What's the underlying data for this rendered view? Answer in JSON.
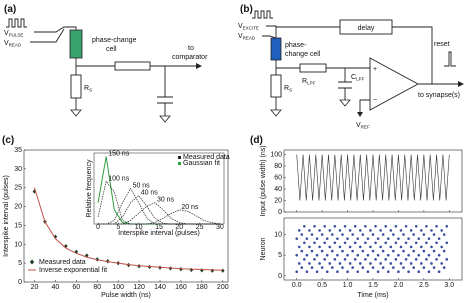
{
  "diagrams": {
    "a": {
      "label": "(a)",
      "v_pulse": {
        "main": "V",
        "sub": "PULSE"
      },
      "v_read": {
        "main": "V",
        "sub": "READ"
      },
      "cell": [
        "phase-change",
        "cell"
      ],
      "target": [
        "to",
        "comparator"
      ],
      "r_s": {
        "main": "R",
        "sub": "S"
      }
    },
    "b": {
      "label": "(b)",
      "v_excite": {
        "main": "V",
        "sub": "EXCITE"
      },
      "v_read": {
        "main": "V",
        "sub": "READ"
      },
      "delay": "delay",
      "reset": "reset",
      "cell": [
        "phase-",
        "change cell"
      ],
      "r_lpf": {
        "main": "R",
        "sub": "LPF"
      },
      "c_lpf": {
        "main": "C",
        "sub": "LPF"
      },
      "plus": "+",
      "minus": "−",
      "v_ref": {
        "main": "V",
        "sub": "REF"
      },
      "target": "to synapse(s)",
      "r_s": {
        "main": "R",
        "sub": "S"
      }
    }
  },
  "chart_data": [
    {
      "type": "scatter",
      "panel_label": "(c)",
      "x_label": "Pulse width (ns)",
      "y_label": "Interspike interval (pulses)",
      "xlim": [
        10,
        205
      ],
      "ylim": [
        0,
        35
      ],
      "xticks": [
        20,
        40,
        60,
        80,
        100,
        120,
        140,
        160,
        180,
        200
      ],
      "yticks": [
        0,
        5,
        10,
        15,
        20,
        25,
        30,
        35
      ],
      "series": [
        {
          "name": "Measured data",
          "color": "#1f3d1f",
          "x": [
            20,
            30,
            40,
            50,
            60,
            70,
            80,
            90,
            100,
            110,
            120,
            130,
            140,
            150,
            160,
            170,
            180,
            190,
            200
          ],
          "values": [
            24,
            16,
            12,
            9.5,
            8,
            7,
            6,
            5.5,
            5,
            4.5,
            4.2,
            4,
            3.8,
            3.6,
            3.4,
            3.2,
            3.1,
            3,
            3
          ]
        },
        {
          "name": "Inverse exponential fit",
          "color": "#c0504d",
          "type": "line",
          "x": [
            20,
            30,
            40,
            50,
            60,
            70,
            80,
            90,
            100,
            110,
            120,
            130,
            140,
            150,
            160,
            170,
            180,
            190,
            200
          ],
          "values": [
            25,
            16,
            11.5,
            9,
            7.6,
            6.6,
            5.9,
            5.4,
            5,
            4.6,
            4.3,
            4.1,
            3.9,
            3.7,
            3.5,
            3.4,
            3.3,
            3.2,
            3.1
          ]
        }
      ],
      "inset": {
        "type": "line",
        "x_label": "Interspike interval (pulses)",
        "y_label": "Relative frequency",
        "xlim": [
          -1,
          31
        ],
        "ylim": [
          0,
          1
        ],
        "xticks": [
          0,
          5,
          10,
          15,
          20,
          25,
          30
        ],
        "legend": [
          {
            "name": "Measured data",
            "color": "#222222"
          },
          {
            "name": "Gaussian fit",
            "color": "#2e9e3e"
          }
        ],
        "x": [
          0,
          2,
          4,
          6,
          8,
          10,
          12,
          14,
          16,
          18,
          20,
          22,
          24,
          26,
          28,
          30
        ],
        "series": [
          {
            "name": "150 ns",
            "color": "#2e9e3e",
            "values": [
              0.3,
              0.95,
              0.2,
              0.02,
              0,
              0,
              0,
              0,
              0,
              0,
              0,
              0,
              0,
              0,
              0,
              0
            ]
          },
          {
            "name": "100 ns",
            "color": "#222222",
            "values": [
              0.1,
              0.6,
              0.45,
              0.05,
              0,
              0,
              0,
              0,
              0,
              0,
              0,
              0,
              0,
              0,
              0,
              0
            ]
          },
          {
            "name": "50 ns",
            "color": "#222222",
            "values": [
              0,
              0,
              0.05,
              0.3,
              0.5,
              0.3,
              0.08,
              0,
              0,
              0,
              0,
              0,
              0,
              0,
              0,
              0
            ]
          },
          {
            "name": "40 ns",
            "color": "#222222",
            "values": [
              0,
              0,
              0,
              0.1,
              0.3,
              0.4,
              0.25,
              0.08,
              0.01,
              0,
              0,
              0,
              0,
              0,
              0,
              0
            ]
          },
          {
            "name": "30 ns",
            "color": "#222222",
            "values": [
              0,
              0,
              0,
              0,
              0.05,
              0.15,
              0.25,
              0.3,
              0.2,
              0.08,
              0.02,
              0,
              0,
              0,
              0,
              0
            ]
          },
          {
            "name": "20 ns",
            "color": "#222222",
            "values": [
              0,
              0,
              0,
              0,
              0,
              0,
              0,
              0.02,
              0.08,
              0.15,
              0.2,
              0.18,
              0.12,
              0.05,
              0.02,
              0
            ]
          }
        ]
      }
    },
    {
      "type": "line",
      "panel_label": "(d)",
      "x_label": "Time (ms)",
      "xlim": [
        -0.25,
        3.25
      ],
      "xticks": [
        {
          "value": 0,
          "label": "0.0"
        },
        0.5,
        {
          "value": 1,
          "label": "1.0"
        },
        1.5,
        {
          "value": 2,
          "label": "2.0"
        },
        2.5,
        {
          "value": 3,
          "label": "3.0"
        }
      ],
      "subplots": [
        {
          "type": "line",
          "y_label": "Input (pulse width) (ns)",
          "ylim": [
            0,
            108
          ],
          "yticks": [
            0,
            20,
            40,
            60,
            80,
            100
          ],
          "color": "#333333",
          "x": [
            0,
            0.0625,
            0.125,
            0.1875,
            0.25,
            0.3125,
            0.375,
            0.4375,
            0.5,
            0.5625,
            0.625,
            0.6875,
            0.75,
            0.8125,
            0.875,
            0.9375,
            1,
            1.0625,
            1.125,
            1.1875,
            1.25,
            1.3125,
            1.375,
            1.4375,
            1.5,
            1.5625,
            1.625,
            1.6875,
            1.75,
            1.8125,
            1.875,
            1.9375,
            2,
            2.0625,
            2.125,
            2.1875,
            2.25,
            2.3125,
            2.375,
            2.4375,
            2.5,
            2.5625,
            2.625,
            2.6875,
            2.75,
            2.8125,
            2.875,
            2.9375,
            3
          ],
          "values": [
            100,
            20,
            100,
            20,
            100,
            20,
            100,
            20,
            100,
            20,
            100,
            20,
            100,
            20,
            100,
            20,
            100,
            20,
            100,
            20,
            100,
            20,
            100,
            20,
            100,
            20,
            100,
            20,
            100,
            20,
            100,
            20,
            100,
            20,
            100,
            20,
            100,
            20,
            100,
            20,
            100,
            20,
            100,
            20,
            100,
            20,
            100,
            20,
            100
          ]
        },
        {
          "type": "scatter",
          "y_label": "Neuron",
          "ylim": [
            -1,
            14
          ],
          "yticks": [
            0,
            5,
            10
          ],
          "color": "#3a4fa0",
          "rows": [
            {
              "neuron": 1,
              "times": [
                0,
                0.2,
                0.4,
                0.6,
                0.8,
                1,
                1.2,
                1.4,
                1.6,
                1.8,
                2,
                2.2,
                2.4,
                2.6,
                2.8
              ]
            },
            {
              "neuron": 2,
              "times": [
                0.1,
                0.3,
                0.5,
                0.7,
                0.9,
                1.1,
                1.3,
                1.5,
                1.7,
                1.9,
                2.1,
                2.3,
                2.5,
                2.7,
                2.9
              ]
            },
            {
              "neuron": 3,
              "times": [
                0.05,
                0.25,
                0.45,
                0.65,
                0.85,
                1.05,
                1.25,
                1.45,
                1.65,
                1.85,
                2.05,
                2.25,
                2.45,
                2.65,
                2.85
              ]
            },
            {
              "neuron": 4,
              "times": [
                0.15,
                0.35,
                0.55,
                0.75,
                0.95,
                1.15,
                1.35,
                1.55,
                1.75,
                1.95,
                2.15,
                2.35,
                2.55,
                2.75,
                2.95
              ]
            },
            {
              "neuron": 5,
              "times": [
                0,
                0.2,
                0.4,
                0.6,
                0.8,
                1,
                1.2,
                1.4,
                1.6,
                1.8,
                2,
                2.2,
                2.4,
                2.6,
                2.8
              ]
            },
            {
              "neuron": 6,
              "times": [
                0.1,
                0.3,
                0.5,
                0.7,
                0.9,
                1.1,
                1.3,
                1.5,
                1.7,
                1.9,
                2.1,
                2.3,
                2.5,
                2.7,
                2.9
              ]
            },
            {
              "neuron": 7,
              "times": [
                0.05,
                0.25,
                0.45,
                0.65,
                0.85,
                1.05,
                1.25,
                1.45,
                1.65,
                1.85,
                2.05,
                2.25,
                2.45,
                2.65,
                2.85
              ]
            },
            {
              "neuron": 8,
              "times": [
                0.15,
                0.35,
                0.55,
                0.75,
                0.95,
                1.15,
                1.35,
                1.55,
                1.75,
                1.95,
                2.15,
                2.35,
                2.55,
                2.75,
                2.95
              ]
            },
            {
              "neuron": 9,
              "times": [
                0,
                0.2,
                0.4,
                0.6,
                0.8,
                1,
                1.2,
                1.4,
                1.6,
                1.8,
                2,
                2.2,
                2.4,
                2.6,
                2.8
              ]
            },
            {
              "neuron": 10,
              "times": [
                0.1,
                0.3,
                0.5,
                0.7,
                0.9,
                1.1,
                1.3,
                1.5,
                1.7,
                1.9,
                2.1,
                2.3,
                2.5,
                2.7,
                2.9
              ]
            },
            {
              "neuron": 11,
              "times": [
                0.05,
                0.25,
                0.45,
                0.65,
                0.85,
                1.05,
                1.25,
                1.45,
                1.65,
                1.85,
                2.05,
                2.25,
                2.45,
                2.65,
                2.85
              ]
            },
            {
              "neuron": 12,
              "times": [
                0.15,
                0.35,
                0.55,
                0.75,
                0.95,
                1.15,
                1.35,
                1.55,
                1.75,
                1.95,
                2.15,
                2.35,
                2.55,
                2.75,
                2.95
              ]
            }
          ]
        }
      ]
    }
  ]
}
